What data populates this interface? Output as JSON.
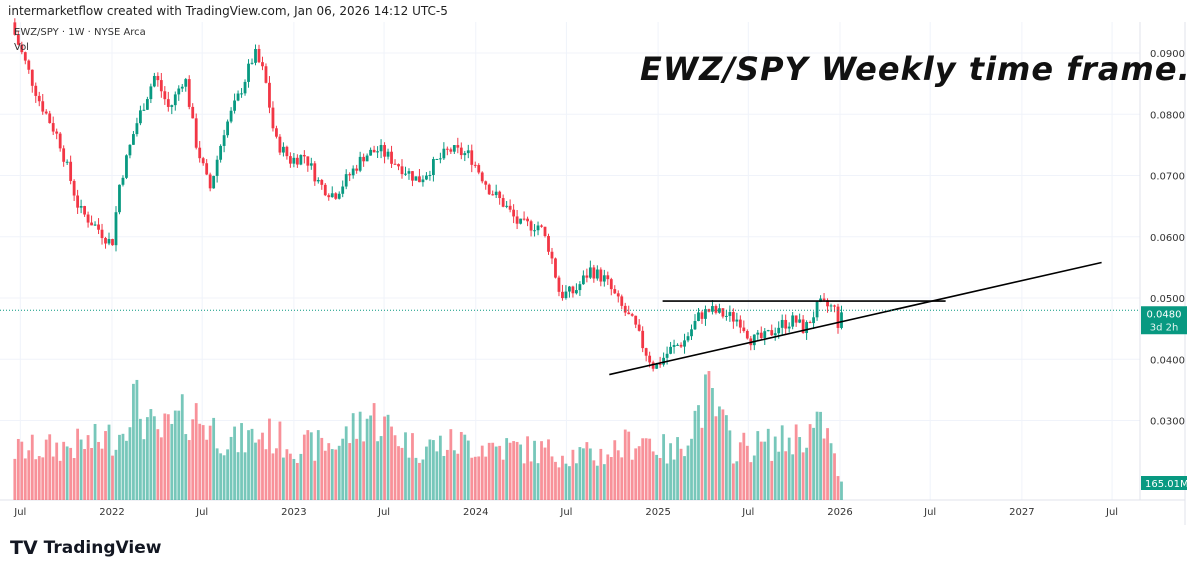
{
  "header": {
    "credit": "intermarketflow created with TradingView.com, Jan 06, 2026 14:12 UTC-5",
    "symbol": "EWZ/SPY · 1W · NYSE Arca",
    "volume_label": "Vol"
  },
  "annotation": "EWZ/SPY Weekly time frame.",
  "logo": "TradingView",
  "chart_data": {
    "type": "candlestick",
    "title": "EWZ/SPY Weekly time frame.",
    "interval": "1W",
    "ylim": [
      0.0225,
      0.098
    ],
    "y_ticks": [
      "0.0900",
      "0.0800",
      "0.0700",
      "0.0600",
      "0.0500",
      "0.0400",
      "0.0300"
    ],
    "x_ticks": [
      [
        "2021-07-01",
        "Jul"
      ],
      [
        "2022-01-01",
        "2022"
      ],
      [
        "2022-07-01",
        "Jul"
      ],
      [
        "2023-01-01",
        "2023"
      ],
      [
        "2023-07-01",
        "Jul"
      ],
      [
        "2024-01-01",
        "2024"
      ],
      [
        "2024-07-01",
        "Jul"
      ],
      [
        "2025-01-01",
        "2025"
      ],
      [
        "2025-07-01",
        "Jul"
      ],
      [
        "2026-01-01",
        "2026"
      ],
      [
        "2026-07-01",
        "Jul"
      ],
      [
        "2027-01-01",
        "2027"
      ],
      [
        "2027-07-01",
        "Jul"
      ]
    ],
    "close_anchors": [
      [
        "2021-06-20",
        0.093
      ],
      [
        "2021-08-08",
        0.0823
      ],
      [
        "2021-09-17",
        0.0758
      ],
      [
        "2021-10-27",
        0.0644
      ],
      [
        "2021-12-08",
        0.061
      ],
      [
        "2022-01-01",
        0.0587
      ],
      [
        "2022-01-16",
        0.0685
      ],
      [
        "2022-02-17",
        0.078
      ],
      [
        "2022-03-28",
        0.0864
      ],
      [
        "2022-04-26",
        0.0807
      ],
      [
        "2022-05-27",
        0.0864
      ],
      [
        "2022-06-17",
        0.0758
      ],
      [
        "2022-07-16",
        0.0676
      ],
      [
        "2022-08-14",
        0.0774
      ],
      [
        "2022-09-13",
        0.0831
      ],
      [
        "2022-10-14",
        0.09
      ],
      [
        "2022-11-03",
        0.0864
      ],
      [
        "2022-11-24",
        0.0758
      ],
      [
        "2022-12-25",
        0.0725
      ],
      [
        "2023-01-23",
        0.0733
      ],
      [
        "2023-02-22",
        0.0685
      ],
      [
        "2023-03-23",
        0.0668
      ],
      [
        "2023-04-22",
        0.07
      ],
      [
        "2023-05-22",
        0.0733
      ],
      [
        "2023-06-21",
        0.0742
      ],
      [
        "2023-07-31",
        0.0717
      ],
      [
        "2023-09-08",
        0.0692
      ],
      [
        "2023-10-08",
        0.0717
      ],
      [
        "2023-11-09",
        0.0742
      ],
      [
        "2023-12-20",
        0.0733
      ],
      [
        "2024-01-30",
        0.0676
      ],
      [
        "2024-02-28",
        0.0652
      ],
      [
        "2024-03-28",
        0.0619
      ],
      [
        "2024-05-08",
        0.0619
      ],
      [
        "2024-05-29",
        0.0578
      ],
      [
        "2024-06-18",
        0.0505
      ],
      [
        "2024-07-17",
        0.051
      ],
      [
        "2024-08-18",
        0.0546
      ],
      [
        "2024-09-17",
        0.053
      ],
      [
        "2024-10-16",
        0.0489
      ],
      [
        "2024-11-14",
        0.0456
      ],
      [
        "2024-12-05",
        0.0415
      ],
      [
        "2024-12-25",
        0.0386
      ],
      [
        "2025-01-25",
        0.0415
      ],
      [
        "2025-02-24",
        0.0431
      ],
      [
        "2025-03-25",
        0.0472
      ],
      [
        "2025-04-15",
        0.048
      ],
      [
        "2025-05-15",
        0.0472
      ],
      [
        "2025-06-14",
        0.0464
      ],
      [
        "2025-07-08",
        0.0431
      ],
      [
        "2025-08-03",
        0.0435
      ],
      [
        "2025-09-02",
        0.0456
      ],
      [
        "2025-10-02",
        0.0464
      ],
      [
        "2025-10-22",
        0.0448
      ],
      [
        "2025-11-20",
        0.0489
      ],
      [
        "2025-12-20",
        0.0484
      ],
      [
        "2025-12-29",
        0.0456
      ],
      [
        "2026-01-05",
        0.048
      ]
    ],
    "volume_unit": "M",
    "volume_anchors": [
      [
        "2021-06-20",
        560
      ],
      [
        "2021-09-15",
        600
      ],
      [
        "2021-11-20",
        650
      ],
      [
        "2022-01-16",
        750
      ],
      [
        "2022-02-10",
        1170
      ],
      [
        "2022-04-01",
        720
      ],
      [
        "2022-06-10",
        1000
      ],
      [
        "2022-09-01",
        650
      ],
      [
        "2022-11-01",
        760
      ],
      [
        "2023-01-15",
        600
      ],
      [
        "2023-04-01",
        650
      ],
      [
        "2023-06-01",
        980
      ],
      [
        "2023-09-01",
        600
      ],
      [
        "2023-12-01",
        650
      ],
      [
        "2024-03-01",
        600
      ],
      [
        "2024-06-01",
        550
      ],
      [
        "2024-09-01",
        500
      ],
      [
        "2024-12-05",
        720
      ],
      [
        "2025-02-01",
        500
      ],
      [
        "2025-04-10",
        1200
      ],
      [
        "2025-06-01",
        600
      ],
      [
        "2025-09-01",
        650
      ],
      [
        "2025-12-01",
        840
      ],
      [
        "2026-01-05",
        165.01
      ]
    ],
    "last_price": "0.0480",
    "countdown": "3d 2h",
    "last_volume": "165.01M",
    "trendlines": [
      {
        "kind": "horizontal resistance",
        "from": [
          "2025-01-10",
          0.0495
        ],
        "to": [
          "2026-08-01",
          0.0495
        ]
      },
      {
        "kind": "rising support",
        "from": [
          "2024-09-25",
          0.0375
        ],
        "to": [
          "2027-06-10",
          0.0558
        ]
      }
    ],
    "colors": {
      "up": "#089981",
      "down": "#f23645",
      "line": "#000000",
      "grid": "#f0f3fa"
    }
  }
}
